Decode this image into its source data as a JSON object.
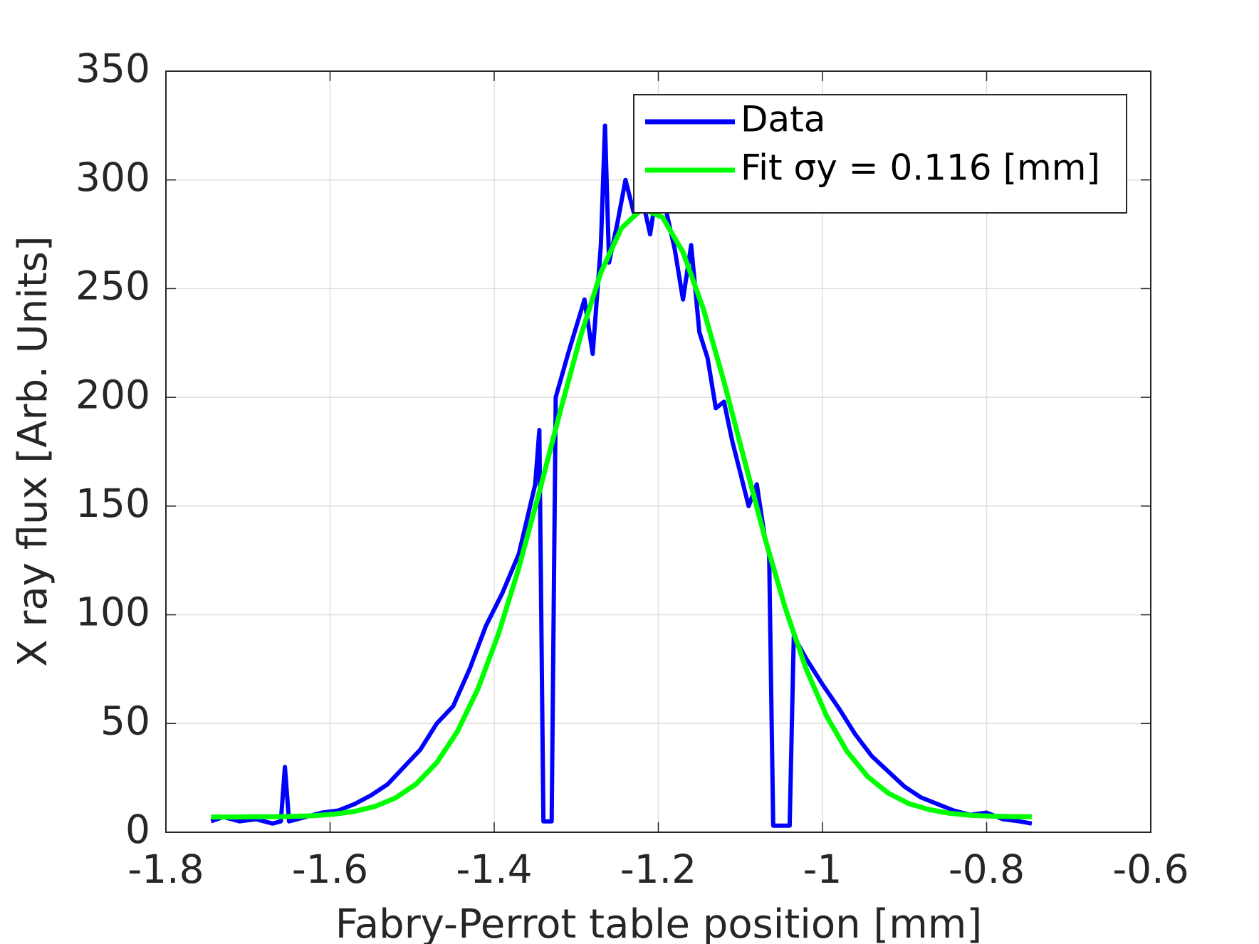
{
  "chart_data": {
    "type": "line",
    "xlabel": "Fabry-Perrot table position [mm]",
    "ylabel": "X ray flux [Arb. Units]",
    "xlim": [
      -1.8,
      -0.6
    ],
    "xticks": [
      -1.8,
      -1.6,
      -1.4,
      -1.2,
      -1,
      -0.8,
      -0.6
    ],
    "ylim": [
      0,
      350
    ],
    "yticks": [
      0,
      50,
      100,
      150,
      200,
      250,
      300,
      350
    ],
    "grid": true,
    "legend": "upper right",
    "series": [
      {
        "name": "Data",
        "color": "#0000ff",
        "x": [
          -1.745,
          -1.73,
          -1.71,
          -1.69,
          -1.67,
          -1.66,
          -1.655,
          -1.65,
          -1.63,
          -1.61,
          -1.59,
          -1.57,
          -1.55,
          -1.53,
          -1.51,
          -1.49,
          -1.47,
          -1.45,
          -1.43,
          -1.41,
          -1.39,
          -1.37,
          -1.35,
          -1.345,
          -1.34,
          -1.33,
          -1.325,
          -1.31,
          -1.29,
          -1.28,
          -1.27,
          -1.265,
          -1.26,
          -1.25,
          -1.24,
          -1.23,
          -1.22,
          -1.21,
          -1.2,
          -1.19,
          -1.18,
          -1.17,
          -1.16,
          -1.15,
          -1.14,
          -1.13,
          -1.12,
          -1.11,
          -1.1,
          -1.09,
          -1.08,
          -1.07,
          -1.065,
          -1.06,
          -1.04,
          -1.035,
          -1.02,
          -1.0,
          -0.98,
          -0.96,
          -0.94,
          -0.92,
          -0.9,
          -0.88,
          -0.86,
          -0.84,
          -0.82,
          -0.8,
          -0.78,
          -0.76,
          -0.745
        ],
        "values": [
          5,
          7,
          5,
          6,
          4,
          5,
          30,
          5,
          7,
          9,
          10,
          13,
          17,
          22,
          30,
          38,
          50,
          58,
          75,
          95,
          110,
          128,
          160,
          185,
          5,
          5,
          200,
          220,
          245,
          220,
          270,
          325,
          262,
          280,
          300,
          285,
          292,
          275,
          300,
          285,
          268,
          245,
          270,
          230,
          218,
          195,
          198,
          180,
          165,
          150,
          160,
          135,
          128,
          3,
          3,
          90,
          80,
          68,
          57,
          45,
          35,
          28,
          21,
          16,
          13,
          10,
          8,
          9,
          6,
          5,
          4
        ]
      },
      {
        "name": "Fit σy = 0.116 [mm]",
        "color": "#00ff00",
        "x": [
          -1.745,
          -1.72,
          -1.695,
          -1.67,
          -1.645,
          -1.62,
          -1.595,
          -1.57,
          -1.545,
          -1.52,
          -1.495,
          -1.47,
          -1.445,
          -1.42,
          -1.395,
          -1.37,
          -1.345,
          -1.32,
          -1.295,
          -1.27,
          -1.245,
          -1.22,
          -1.195,
          -1.17,
          -1.145,
          -1.12,
          -1.095,
          -1.07,
          -1.045,
          -1.02,
          -0.995,
          -0.97,
          -0.945,
          -0.92,
          -0.895,
          -0.87,
          -0.845,
          -0.82,
          -0.795,
          -0.77,
          -0.745
        ],
        "values": [
          7.0,
          7.0,
          7.1,
          7.1,
          7.3,
          7.6,
          8.3,
          9.6,
          11.9,
          15.8,
          22.2,
          32.0,
          46.2,
          65.8,
          91.0,
          121.6,
          156.5,
          192.9,
          227.7,
          257.4,
          277.8,
          286.7,
          282.8,
          266.8,
          240.5,
          207.2,
          171.0,
          135.2,
          102.7,
          75.2,
          53.4,
          37.1,
          25.6,
          18.0,
          13.2,
          10.4,
          8.7,
          7.8,
          7.4,
          7.2,
          7.1
        ]
      }
    ]
  }
}
